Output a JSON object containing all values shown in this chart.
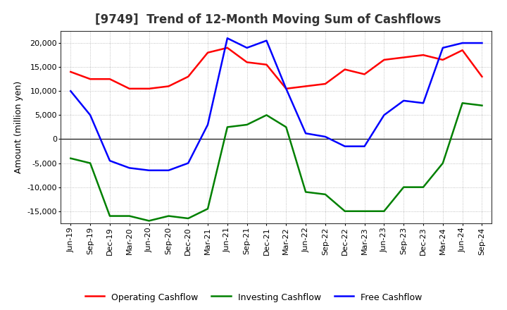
{
  "title": "[9749]  Trend of 12-Month Moving Sum of Cashflows",
  "ylabel": "Amount (million yen)",
  "x_labels": [
    "Jun-19",
    "Sep-19",
    "Dec-19",
    "Mar-20",
    "Jun-20",
    "Sep-20",
    "Dec-20",
    "Mar-21",
    "Jun-21",
    "Sep-21",
    "Dec-21",
    "Mar-22",
    "Jun-22",
    "Sep-22",
    "Dec-22",
    "Mar-23",
    "Jun-23",
    "Sep-23",
    "Dec-23",
    "Mar-24",
    "Jun-24",
    "Sep-24"
  ],
  "operating": [
    14000,
    12500,
    12500,
    10500,
    10500,
    11000,
    13000,
    18000,
    19000,
    16000,
    15500,
    10500,
    11000,
    11500,
    14500,
    13500,
    16500,
    17000,
    17500,
    16500,
    18500,
    13000
  ],
  "investing": [
    -4000,
    -5000,
    -16000,
    -16000,
    -17000,
    -16000,
    -16500,
    -14500,
    2500,
    3000,
    5000,
    2500,
    -11000,
    -11500,
    -15000,
    -15000,
    -15000,
    -10000,
    -10000,
    -5000,
    7500,
    7000
  ],
  "free": [
    10000,
    5000,
    -4500,
    -6000,
    -6500,
    -6500,
    -5000,
    3000,
    21000,
    19000,
    20500,
    10500,
    1200,
    500,
    -1500,
    -1500,
    5000,
    8000,
    7500,
    19000,
    20000,
    20000
  ],
  "ylim": [
    -17500,
    22500
  ],
  "yticks": [
    -15000,
    -10000,
    -5000,
    0,
    5000,
    10000,
    15000,
    20000
  ],
  "colors": {
    "operating": "#ff0000",
    "investing": "#008000",
    "free": "#0000ff"
  },
  "legend_labels": [
    "Operating Cashflow",
    "Investing Cashflow",
    "Free Cashflow"
  ],
  "bg_color": "#ffffff",
  "grid_color": "#b0b0b0",
  "line_width": 1.8,
  "title_fontsize": 12,
  "ylabel_fontsize": 9,
  "tick_fontsize": 8,
  "legend_fontsize": 9
}
